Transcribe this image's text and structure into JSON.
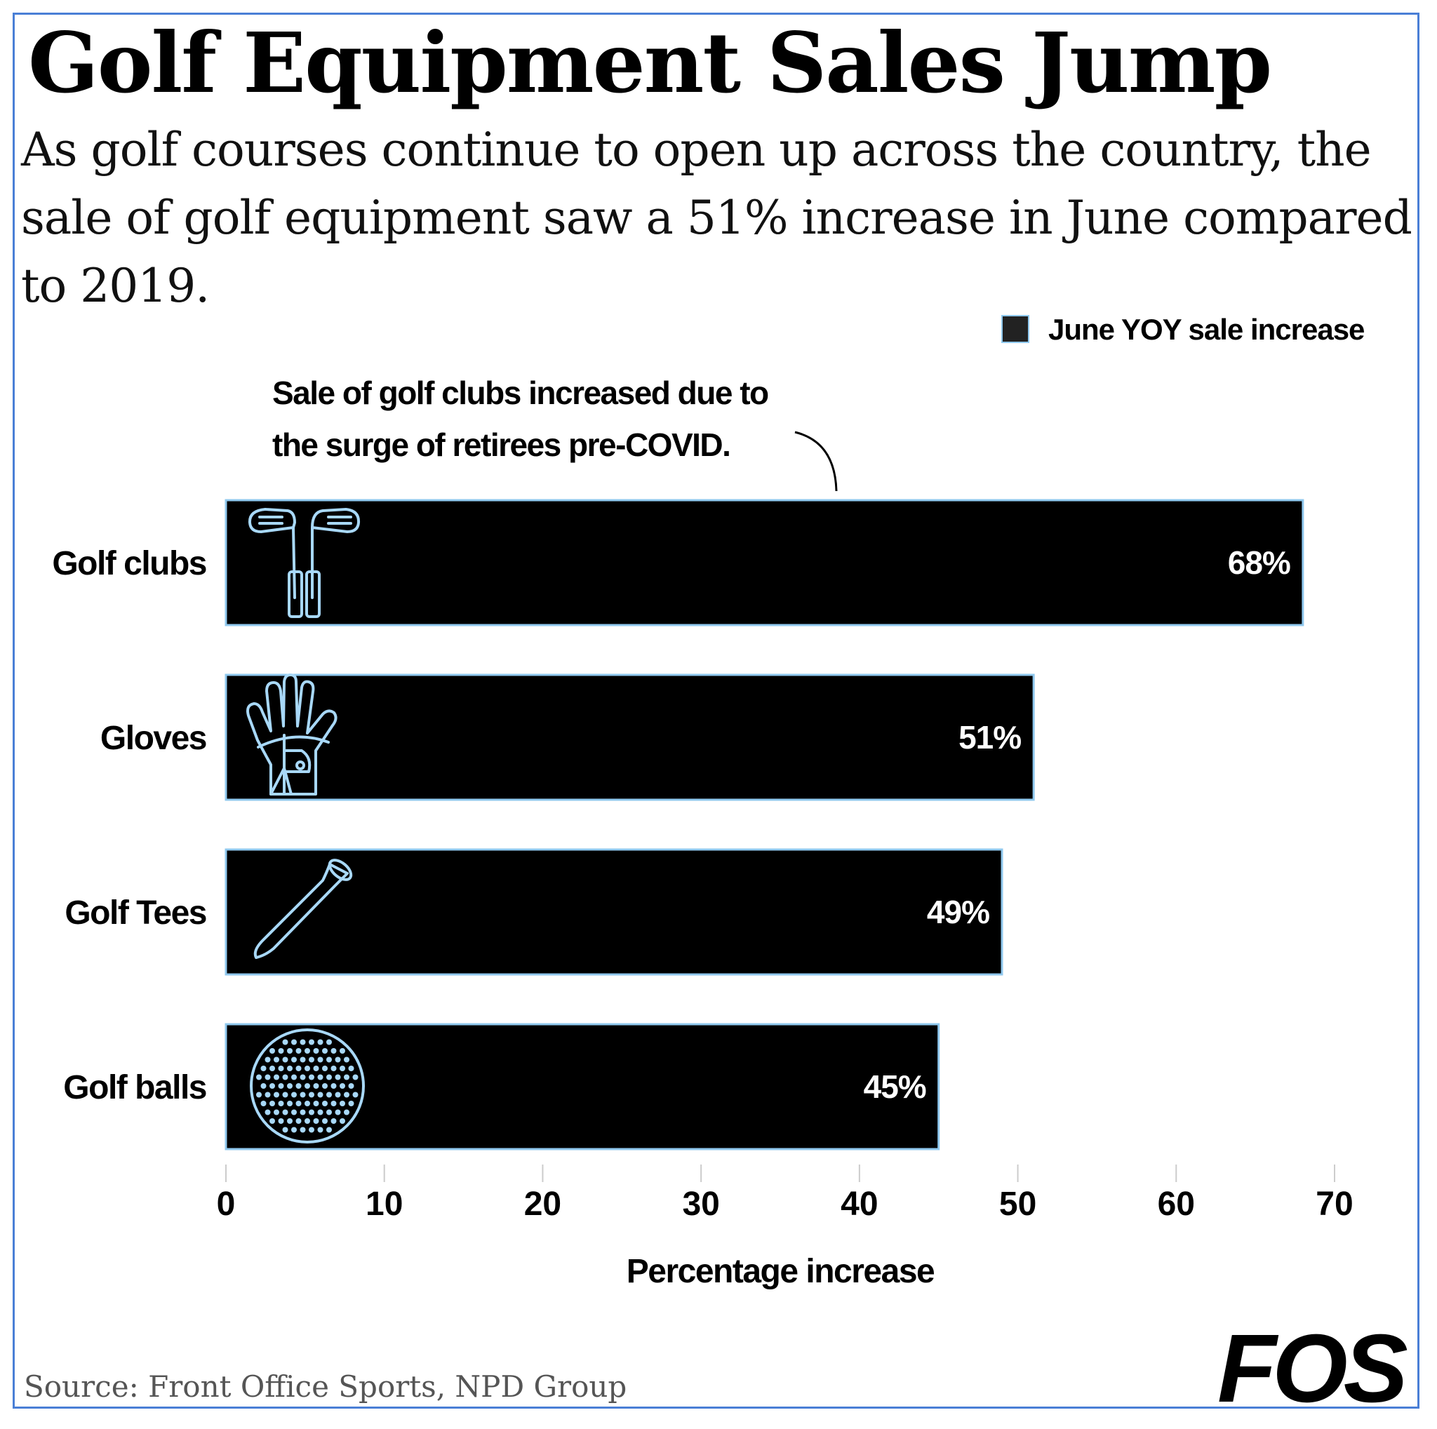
{
  "title": "Golf Equipment Sales Jump",
  "subtitle": "As golf courses continue to open up across the country, the sale of golf equipment saw a 51% increase in June compared to 2019.",
  "source": "Source: Front Office Sports, NPD Group",
  "logo": "FOS",
  "colors": {
    "bar": "#000000",
    "bar_outline": "#8fc8ee",
    "icon": "#a8d8f8",
    "frame": "#4a7fd6"
  },
  "chart_data": {
    "type": "bar",
    "orientation": "horizontal",
    "categories": [
      "Golf clubs",
      "Gloves",
      "Golf Tees",
      "Golf balls"
    ],
    "icons": [
      "golf-clubs-icon",
      "glove-icon",
      "golf-tee-icon",
      "golf-ball-icon"
    ],
    "series": [
      {
        "name": "June YOY sale increase",
        "values": [
          68,
          51,
          49,
          45
        ]
      }
    ],
    "value_labels": [
      "68%",
      "51%",
      "49%",
      "45%"
    ],
    "xlabel": "Percentage increase",
    "xlim": [
      0,
      70
    ],
    "xticks": [
      "0",
      "10",
      "20",
      "30",
      "40",
      "50",
      "60",
      "70"
    ],
    "legend": {
      "position": "top-right",
      "label": "June YOY sale increase"
    },
    "annotation": {
      "lines": [
        "Sale of golf clubs increased due to",
        "the surge of retirees pre-COVID."
      ],
      "target": "Golf clubs"
    },
    "grid": false
  }
}
